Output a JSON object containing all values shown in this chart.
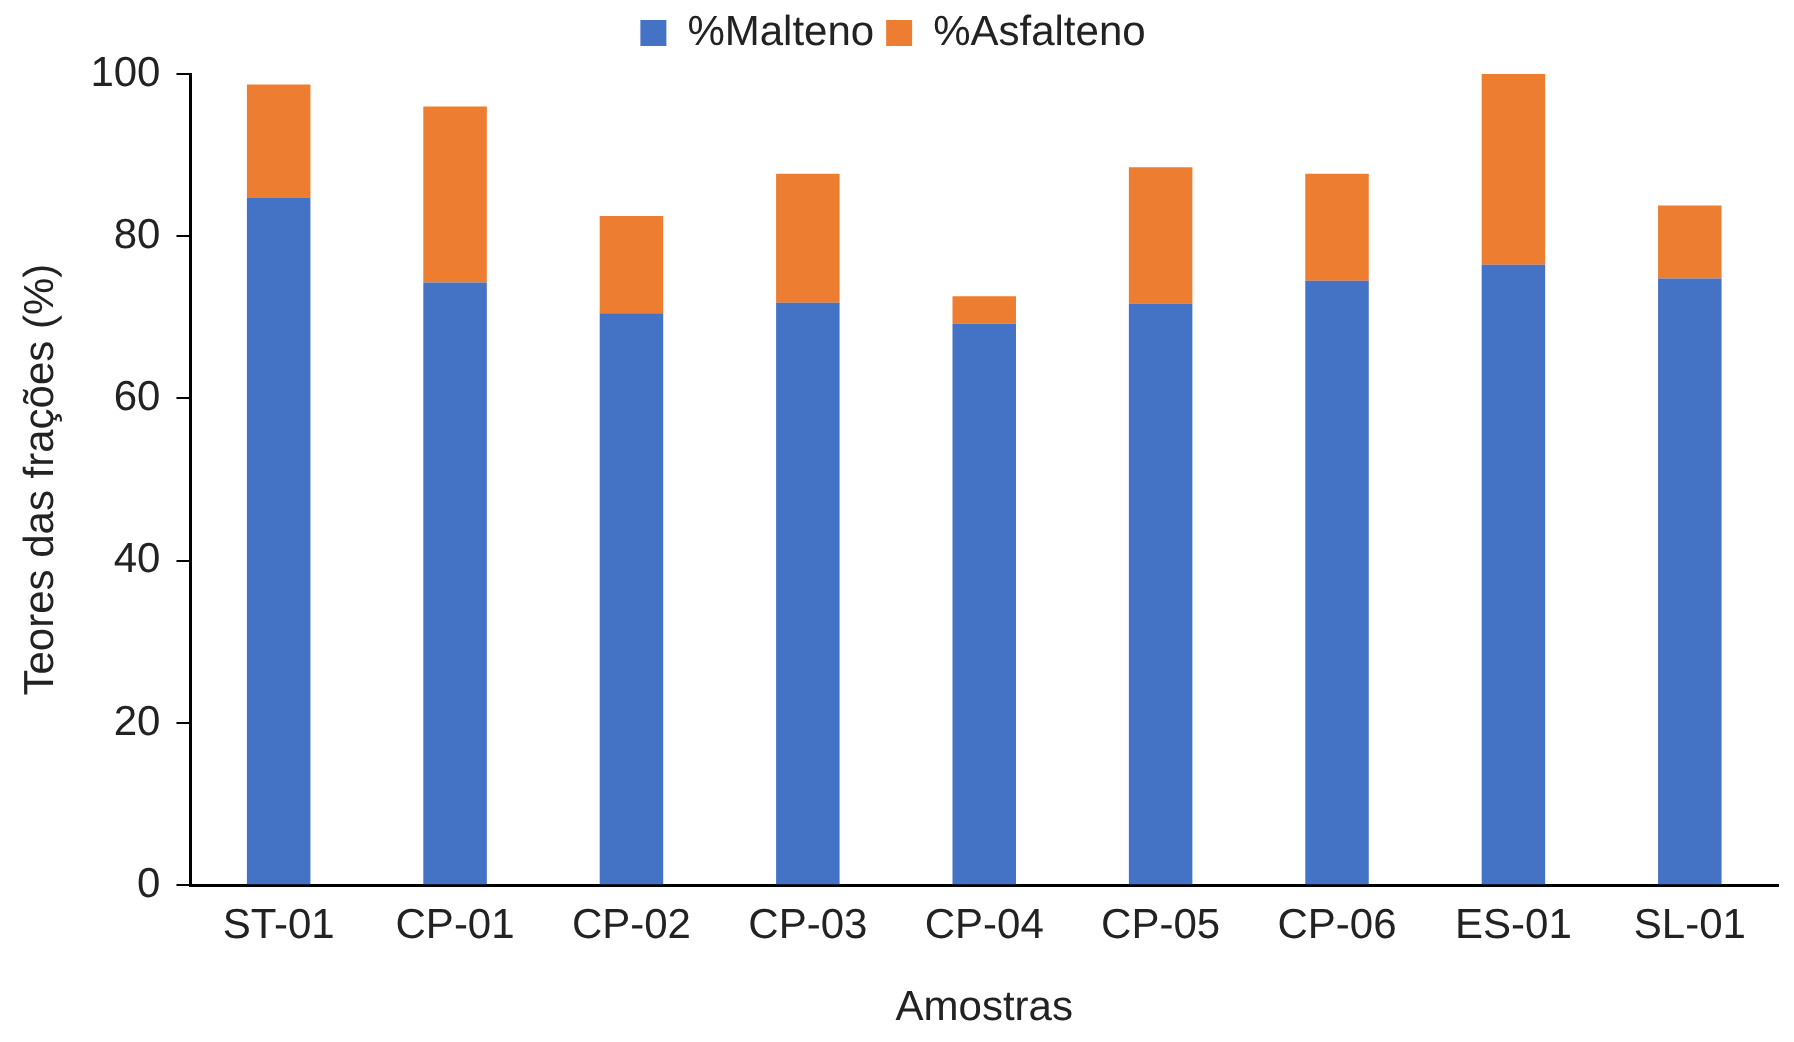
{
  "chart_data": {
    "type": "bar",
    "stacked": true,
    "xlabel": "Amostras",
    "ylabel": "Teores das frações (%)",
    "categories": [
      "ST-01",
      "CP-01",
      "CP-02",
      "CP-03",
      "CP-04",
      "CP-05",
      "CP-06",
      "ES-01",
      "SL-01"
    ],
    "series": [
      {
        "name": "%Malteno",
        "color": "#4472c4",
        "values": [
          84.7,
          74.3,
          70.5,
          71.8,
          69.2,
          71.7,
          74.5,
          76.5,
          74.8
        ]
      },
      {
        "name": "%Asfalteno",
        "color": "#ed7d31",
        "values": [
          14.0,
          21.7,
          12.0,
          15.9,
          3.4,
          16.8,
          13.2,
          23.5,
          9.0
        ]
      }
    ],
    "ylim": [
      0,
      100
    ],
    "yticks": [
      0,
      20,
      40,
      60,
      80,
      100
    ],
    "grid": false,
    "legend": "top"
  }
}
